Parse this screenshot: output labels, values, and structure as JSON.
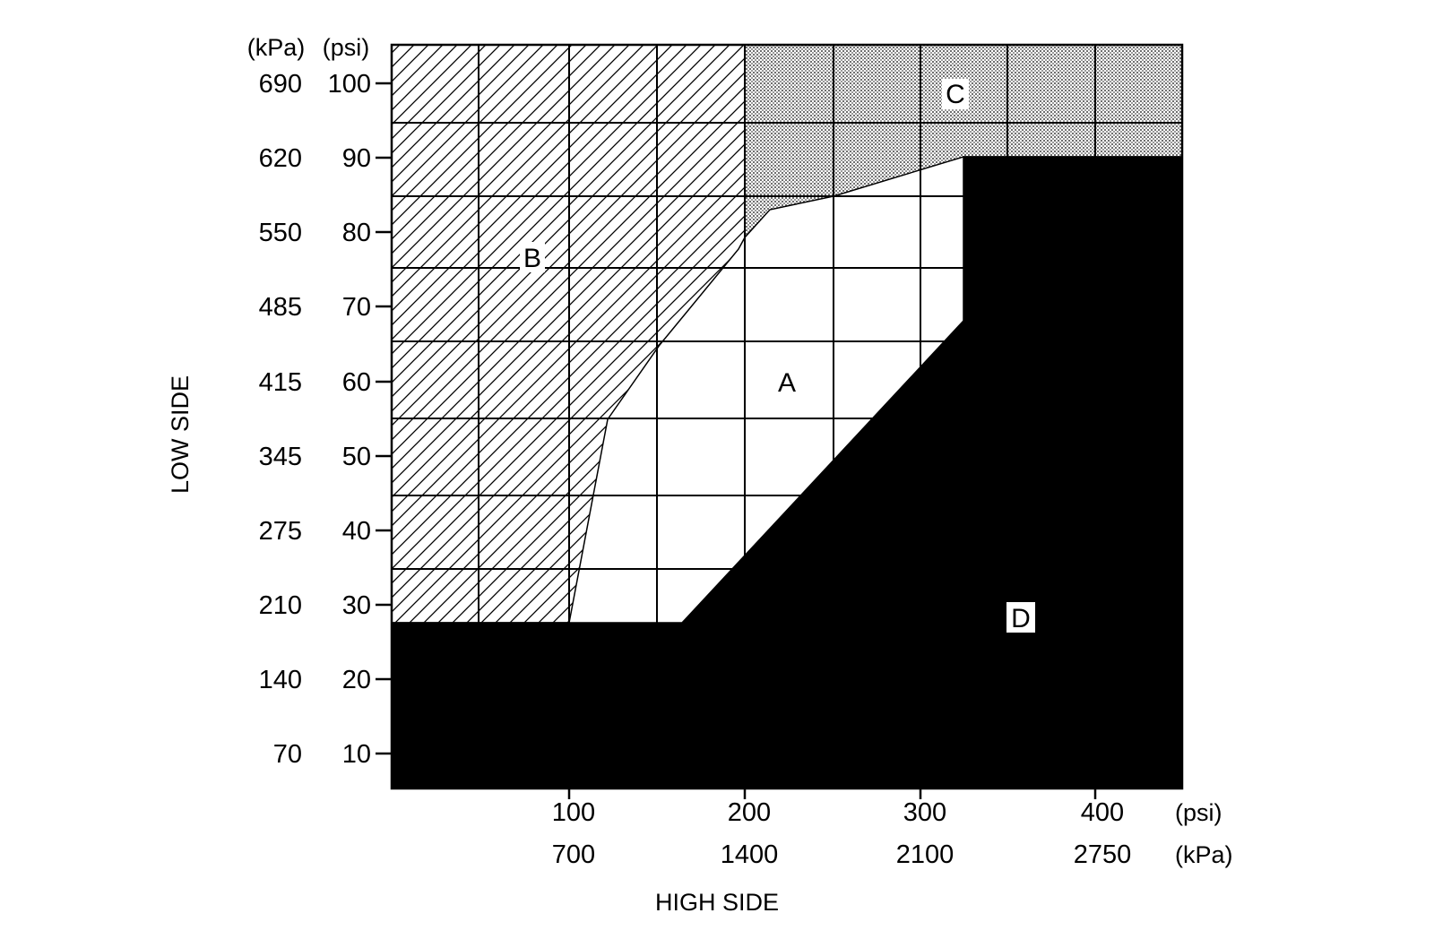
{
  "low_side_axis": {
    "title": "LOW SIDE",
    "unit_kpa": "(kPa)",
    "unit_psi": "(psi)",
    "ticks": [
      {
        "kpa": "690",
        "psi": "100",
        "value": 100
      },
      {
        "kpa": "620",
        "psi": "90",
        "value": 90
      },
      {
        "kpa": "550",
        "psi": "80",
        "value": 80
      },
      {
        "kpa": "485",
        "psi": "70",
        "value": 70
      },
      {
        "kpa": "415",
        "psi": "60",
        "value": 60
      },
      {
        "kpa": "345",
        "psi": "50",
        "value": 50
      },
      {
        "kpa": "275",
        "psi": "40",
        "value": 40
      },
      {
        "kpa": "210",
        "psi": "30",
        "value": 30
      },
      {
        "kpa": "140",
        "psi": "20",
        "value": 20
      },
      {
        "kpa": "70",
        "psi": "10",
        "value": 10
      }
    ]
  },
  "high_side_axis": {
    "title": "HIGH SIDE",
    "unit_psi": "(psi)",
    "unit_kpa": "(kPa)",
    "ticks": [
      {
        "psi": "100",
        "kpa": "700",
        "value": 100
      },
      {
        "psi": "200",
        "kpa": "1400",
        "value": 200
      },
      {
        "psi": "300",
        "kpa": "2100",
        "value": 300
      },
      {
        "psi": "400",
        "kpa": "2750",
        "value": 400
      }
    ]
  },
  "regions": {
    "a": "A",
    "b": "B",
    "c": "C",
    "d": "D"
  },
  "colors": {
    "line": "#000000",
    "region_d_fill": "#000000",
    "region_c_fill": "#b4b4b4",
    "background": "#ffffff"
  }
}
